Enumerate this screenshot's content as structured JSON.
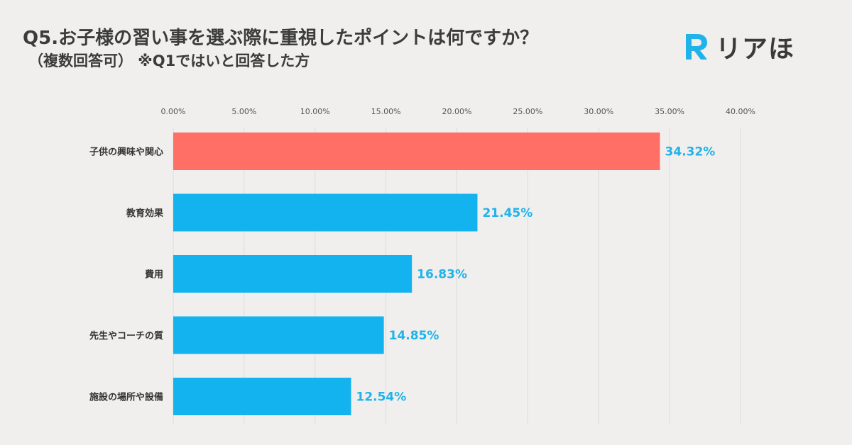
{
  "header": {
    "title": "Q5.お子様の習い事を選ぶ際に重視したポイントは何ですか？",
    "subtitle": "（複数回答可） ※Q1ではいと回答した方"
  },
  "logo": {
    "text": "リアほ",
    "icon": "r-logo-icon",
    "color": "#1fb3ea"
  },
  "colors": {
    "highlight_bar": "#ff6f66",
    "default_bar": "#12b3ee",
    "value_label": "#1fb3ea",
    "grid": "#dcdcdc"
  },
  "chart_data": {
    "type": "bar",
    "orientation": "horizontal",
    "title": "Q5.お子様の習い事を選ぶ際に重視したポイントは何ですか？",
    "subtitle": "（複数回答可） ※Q1ではいと回答した方",
    "xlabel": "",
    "ylabel": "",
    "xlim": [
      0,
      40
    ],
    "grid": true,
    "legend": "none",
    "tick_values": [
      0,
      5,
      10,
      15,
      20,
      25,
      30,
      35,
      40
    ],
    "tick_labels": [
      "0.00%",
      "5.00%",
      "10.00%",
      "15.00%",
      "20.00%",
      "25.00%",
      "30.00%",
      "35.00%",
      "40.00%"
    ],
    "categories": [
      "子供の興味や関心",
      "教育効果",
      "費用",
      "先生やコーチの質",
      "施設の場所や設備"
    ],
    "values": [
      34.32,
      21.45,
      16.83,
      14.85,
      12.54
    ],
    "value_labels": [
      "34.32%",
      "21.45%",
      "16.83%",
      "14.85%",
      "12.54%"
    ],
    "highlight_index": 0
  }
}
